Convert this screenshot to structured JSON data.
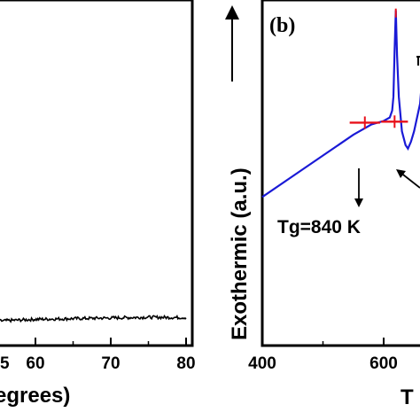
{
  "chart_data": [
    {
      "panel": "a",
      "type": "line",
      "xlabel": "egrees)",
      "ylabel": "",
      "xlim": [
        35,
        80
      ],
      "ylim": [
        0,
        100
      ],
      "xticks": [
        60,
        70,
        80
      ],
      "tick_labels": [
        "60",
        "70",
        "80"
      ],
      "series": [
        {
          "x": [
            35,
            40,
            45,
            50,
            55,
            60,
            65,
            70,
            75,
            80
          ],
          "y": [
            6.5,
            6.6,
            6.8,
            6.9,
            7.1,
            7.6,
            7.8,
            8.0,
            8.2,
            8.1
          ]
        }
      ],
      "partial_tick_label": "5",
      "grid": false,
      "color": "#000000"
    },
    {
      "panel": "b",
      "type": "line",
      "panel_label": "(b)",
      "xlabel": "T",
      "ylabel": "Exothermic (a.u.)",
      "xlim": [
        400,
        740
      ],
      "ylim": [
        0,
        100
      ],
      "xticks": [
        400,
        600
      ],
      "tick_labels": [
        "400",
        "600"
      ],
      "series": [
        {
          "x": [
            400,
            450,
            500,
            550,
            580,
            600,
            610,
            614,
            616,
            618,
            620,
            622,
            625,
            630,
            636,
            640,
            645,
            650,
            660,
            670,
            680,
            690,
            700,
            720,
            740
          ],
          "y": [
            43,
            49,
            55,
            61,
            64,
            65,
            66,
            68,
            72,
            85,
            97,
            84,
            72,
            62,
            58,
            57,
            59,
            62,
            70,
            76,
            80,
            82,
            82,
            80,
            78
          ]
        }
      ],
      "tangent_marks": [
        {
          "x": [
            544,
            594
          ],
          "y": [
            64.5,
            64.5
          ]
        },
        {
          "x": [
            596,
            640
          ],
          "y": [
            64.8,
            64.8
          ]
        }
      ],
      "annotations": [
        {
          "text": "Tg=840 K"
        }
      ],
      "grid": false,
      "line_color": "#1a1ad6",
      "tangent_color": "#e8101a"
    }
  ]
}
